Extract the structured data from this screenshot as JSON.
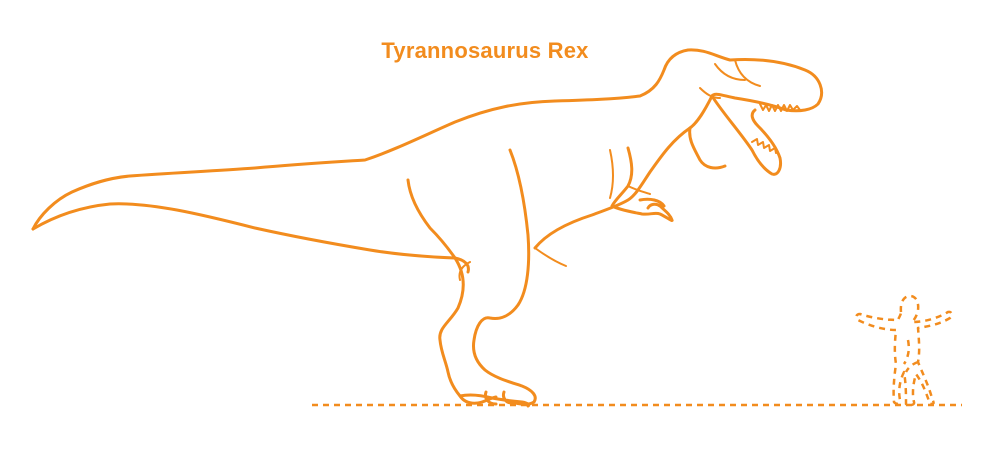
{
  "diagram": {
    "title": "Tyrannosaurus Rex",
    "accent_color": "#f28c1e"
  }
}
